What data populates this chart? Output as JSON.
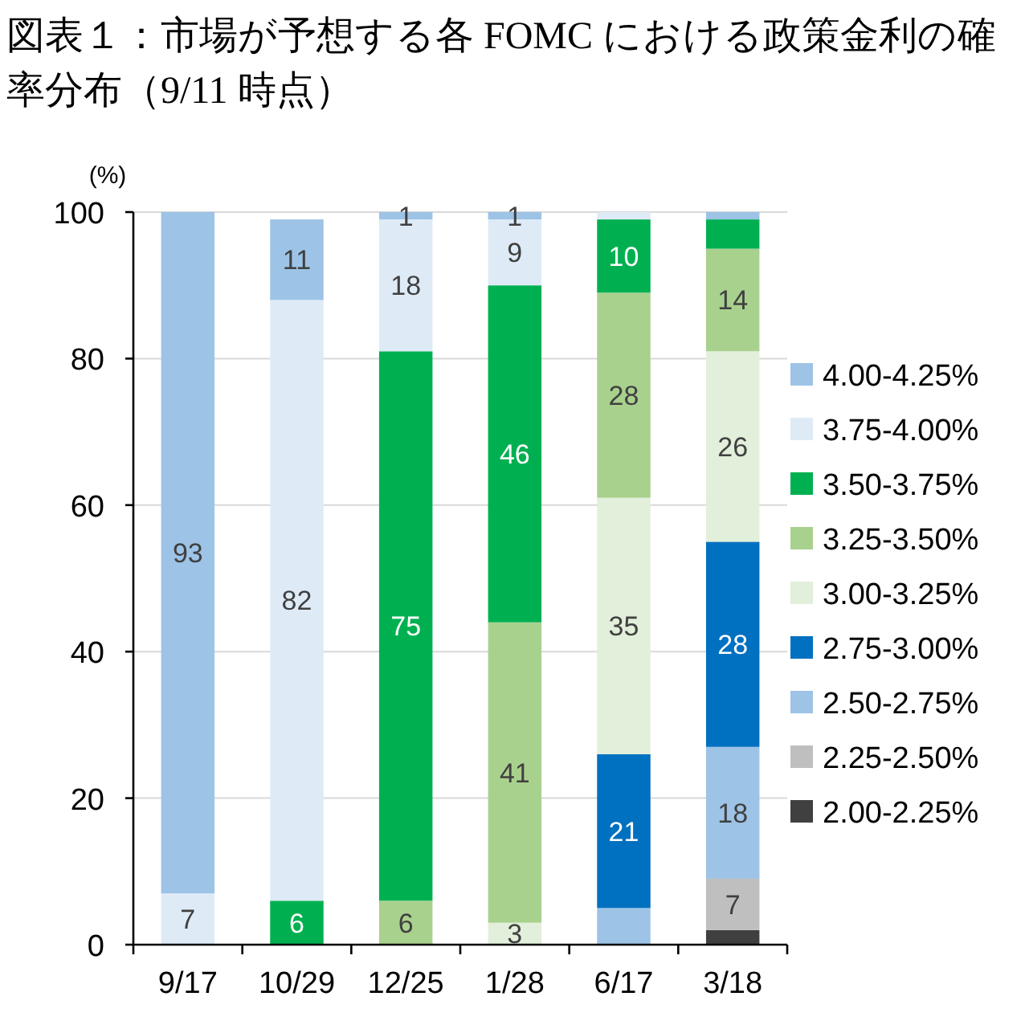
{
  "chart_data": {
    "type": "bar",
    "stacked": true,
    "title": "図表１：市場が予想する各 FOMC における政策金利の確率分布（9/11 時点）",
    "ylabel": "(%)",
    "categories": [
      "9/17",
      "10/29",
      "12/25",
      "1/28",
      "6/17",
      "3/18"
    ],
    "ylim": [
      0,
      100
    ],
    "yticks": [
      0,
      20,
      40,
      60,
      80,
      100
    ],
    "grid": "y",
    "legend": "right",
    "series": [
      {
        "name": "2.00-2.25%",
        "color": "#404040",
        "values": [
          null,
          null,
          null,
          null,
          null,
          2
        ],
        "value_labels": [
          null,
          null,
          null,
          null,
          null,
          null
        ]
      },
      {
        "name": "2.25-2.50%",
        "color": "#bfbfbf",
        "values": [
          null,
          null,
          null,
          null,
          null,
          7
        ],
        "value_labels": [
          null,
          null,
          null,
          null,
          null,
          "7"
        ]
      },
      {
        "name": "2.50-2.75%",
        "color": "#9dc3e6",
        "values": [
          null,
          null,
          null,
          null,
          5,
          18
        ],
        "value_labels": [
          null,
          null,
          null,
          null,
          null,
          "18"
        ]
      },
      {
        "name": "2.75-3.00%",
        "color": "#0070c0",
        "values": [
          null,
          null,
          null,
          null,
          21,
          28
        ],
        "value_labels": [
          null,
          null,
          null,
          null,
          "21",
          "28"
        ]
      },
      {
        "name": "3.00-3.25%",
        "color": "#e2efda",
        "values": [
          null,
          null,
          null,
          3,
          35,
          26
        ],
        "value_labels": [
          null,
          null,
          null,
          "3",
          "35",
          "26"
        ]
      },
      {
        "name": "3.25-3.50%",
        "color": "#a9d18e",
        "values": [
          null,
          null,
          6,
          41,
          28,
          14
        ],
        "value_labels": [
          null,
          null,
          "6",
          "41",
          "28",
          "14"
        ]
      },
      {
        "name": "3.50-3.75%",
        "color": "#00b050",
        "values": [
          null,
          6,
          75,
          46,
          10,
          4
        ],
        "value_labels": [
          null,
          "6",
          "75",
          "46",
          "10",
          null
        ]
      },
      {
        "name": "3.75-4.00%",
        "color": "#deebf7",
        "values": [
          7,
          82,
          18,
          9,
          1,
          null
        ],
        "value_labels": [
          "7",
          "82",
          "18",
          "9",
          null,
          null
        ]
      },
      {
        "name": "4.00-4.25%",
        "color": "#9dc3e6",
        "values": [
          93,
          11,
          1,
          1,
          null,
          1
        ],
        "value_labels": [
          "93",
          "11",
          "1",
          "1",
          null,
          null
        ]
      }
    ]
  }
}
